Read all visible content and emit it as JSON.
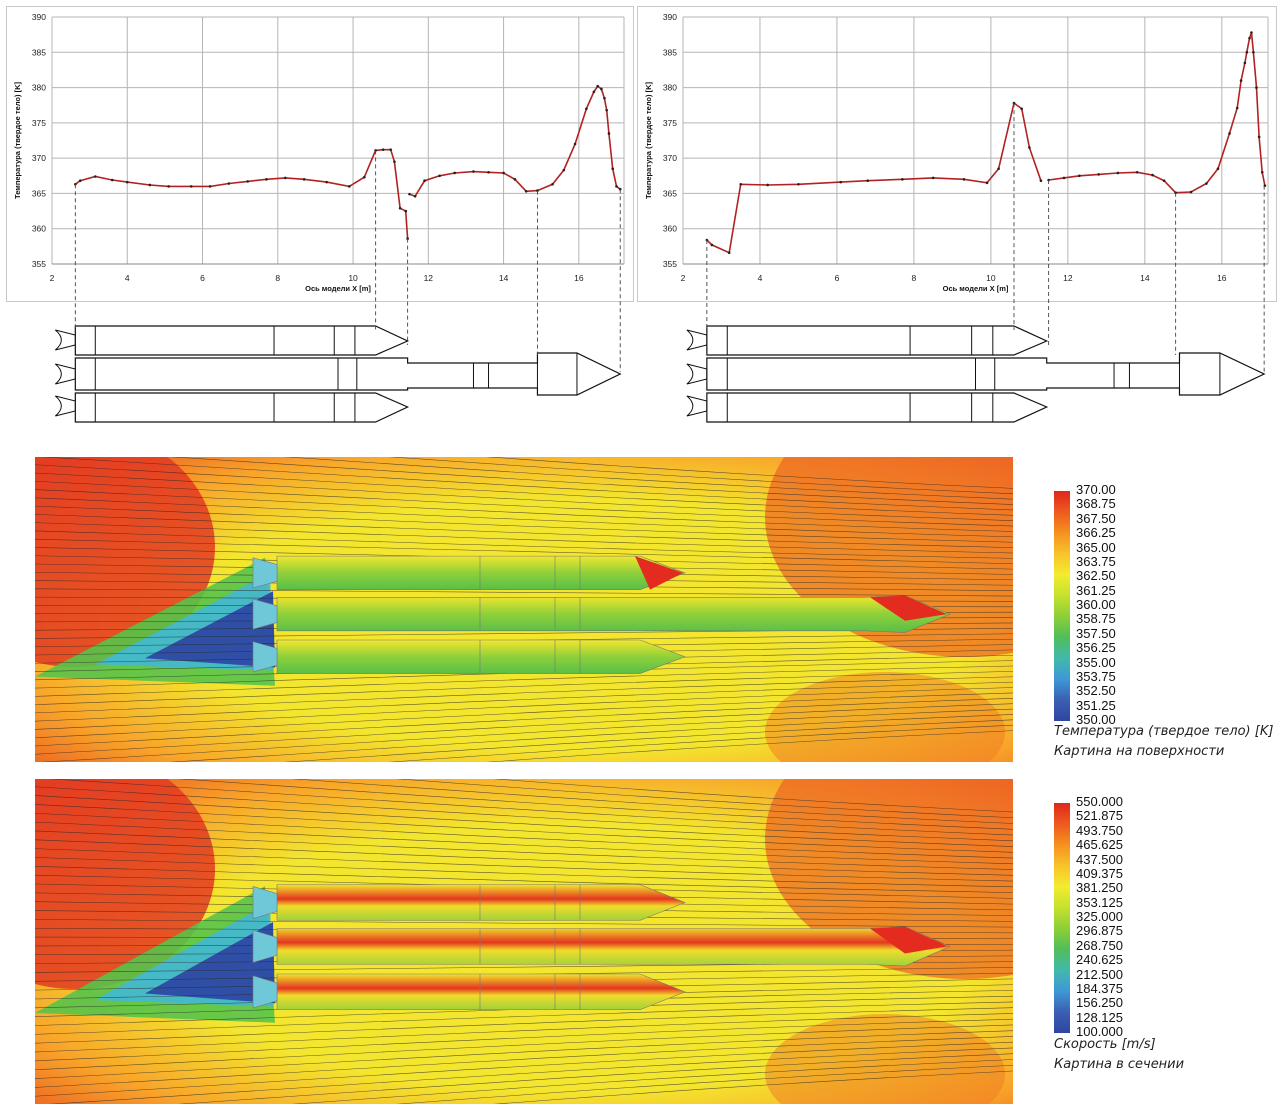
{
  "charts": [
    {
      "type": "line",
      "ylabel": "Температура (твердое тело) [K]",
      "xlabel": "Ось модели X [m]",
      "xlim": [
        2,
        17.2
      ],
      "ylim": [
        355,
        390
      ],
      "xticks": [
        "2",
        "4",
        "6",
        "8",
        "10",
        "12",
        "14",
        "16"
      ],
      "yticks": [
        "355",
        "360",
        "365",
        "370",
        "375",
        "380",
        "385",
        "390"
      ],
      "series_color": "#b22222",
      "segments": [
        [
          [
            2.62,
            366.3
          ],
          [
            2.75,
            366.8
          ],
          [
            3.15,
            367.4
          ],
          [
            3.6,
            366.9
          ],
          [
            4.0,
            366.6
          ],
          [
            4.6,
            366.2
          ],
          [
            5.1,
            366.0
          ],
          [
            5.7,
            366.0
          ],
          [
            6.2,
            366.0
          ],
          [
            6.7,
            366.4
          ],
          [
            7.2,
            366.7
          ],
          [
            7.7,
            367.0
          ],
          [
            8.2,
            367.2
          ],
          [
            8.7,
            367.0
          ],
          [
            9.3,
            366.6
          ],
          [
            9.9,
            366.0
          ],
          [
            10.3,
            367.3
          ],
          [
            10.6,
            371.1
          ],
          [
            10.8,
            371.2
          ],
          [
            11.0,
            371.2
          ],
          [
            11.1,
            369.5
          ],
          [
            11.25,
            362.9
          ],
          [
            11.4,
            362.5
          ],
          [
            11.45,
            358.6
          ]
        ],
        [
          [
            11.5,
            364.9
          ],
          [
            11.65,
            364.6
          ],
          [
            11.9,
            366.8
          ],
          [
            12.3,
            367.5
          ],
          [
            12.7,
            367.9
          ],
          [
            13.2,
            368.1
          ],
          [
            13.6,
            368.0
          ],
          [
            14.0,
            367.9
          ],
          [
            14.3,
            367.0
          ],
          [
            14.6,
            365.3
          ],
          [
            14.9,
            365.4
          ],
          [
            15.3,
            366.3
          ],
          [
            15.6,
            368.3
          ],
          [
            15.9,
            372.0
          ],
          [
            16.2,
            377.0
          ],
          [
            16.4,
            379.4
          ],
          [
            16.5,
            380.2
          ],
          [
            16.6,
            379.8
          ],
          [
            16.68,
            378.5
          ],
          [
            16.74,
            376.8
          ],
          [
            16.8,
            373.5
          ],
          [
            16.9,
            368.5
          ],
          [
            17.0,
            366.0
          ],
          [
            17.1,
            365.6
          ]
        ]
      ]
    },
    {
      "type": "line",
      "ylabel": "Температура (твердое тело) [K]",
      "xlabel": "Ось модели X [m]",
      "xlim": [
        2,
        17.2
      ],
      "ylim": [
        355,
        390
      ],
      "xticks": [
        "2",
        "4",
        "6",
        "8",
        "10",
        "12",
        "14",
        "16"
      ],
      "yticks": [
        "355",
        "360",
        "365",
        "370",
        "375",
        "380",
        "385",
        "390"
      ],
      "series_color": "#b22222",
      "segments": [
        [
          [
            2.62,
            358.4
          ],
          [
            2.75,
            357.7
          ],
          [
            3.2,
            356.6
          ],
          [
            3.5,
            366.3
          ],
          [
            4.2,
            366.2
          ],
          [
            5.0,
            366.3
          ],
          [
            6.1,
            366.6
          ],
          [
            6.8,
            366.8
          ],
          [
            7.7,
            367.0
          ],
          [
            8.5,
            367.2
          ],
          [
            9.3,
            367.0
          ],
          [
            9.9,
            366.5
          ],
          [
            10.2,
            368.5
          ],
          [
            10.6,
            377.8
          ],
          [
            10.8,
            377.0
          ],
          [
            11.0,
            371.5
          ],
          [
            11.3,
            366.8
          ]
        ],
        [
          [
            11.5,
            366.9
          ],
          [
            11.9,
            367.2
          ],
          [
            12.3,
            367.5
          ],
          [
            12.8,
            367.7
          ],
          [
            13.3,
            367.9
          ],
          [
            13.8,
            368.0
          ],
          [
            14.2,
            367.6
          ],
          [
            14.5,
            366.8
          ],
          [
            14.8,
            365.1
          ],
          [
            15.2,
            365.2
          ],
          [
            15.6,
            366.4
          ],
          [
            15.9,
            368.5
          ],
          [
            16.2,
            373.5
          ],
          [
            16.4,
            377.1
          ],
          [
            16.5,
            381.0
          ],
          [
            16.6,
            383.5
          ],
          [
            16.65,
            385.0
          ],
          [
            16.72,
            387.0
          ],
          [
            16.77,
            387.8
          ],
          [
            16.82,
            385.0
          ],
          [
            16.9,
            380.0
          ],
          [
            16.97,
            373.0
          ],
          [
            17.05,
            368.0
          ],
          [
            17.12,
            366.1
          ]
        ]
      ]
    }
  ],
  "legend_temperature": {
    "values": [
      "370.00",
      "368.75",
      "367.50",
      "366.25",
      "365.00",
      "363.75",
      "362.50",
      "361.25",
      "360.00",
      "358.75",
      "357.50",
      "356.25",
      "355.00",
      "353.75",
      "352.50",
      "351.25",
      "350.00"
    ],
    "title": "Температура (твердое тело) [K]",
    "subtitle": "Картина на поверхности"
  },
  "legend_velocity": {
    "values": [
      "550.000",
      "521.875",
      "493.750",
      "465.625",
      "437.500",
      "409.375",
      "381.250",
      "353.125",
      "325.000",
      "296.875",
      "268.750",
      "240.625",
      "212.500",
      "184.375",
      "156.250",
      "128.125",
      "100.000"
    ],
    "title": "Скорость [m/s]",
    "subtitle": "Картина в сечении"
  },
  "colorbar_colors": [
    "#e1261c",
    "#ee5a1e",
    "#f5911f",
    "#f8c32a",
    "#f3ec2e",
    "#c4e22e",
    "#8ccf37",
    "#4fbe5a",
    "#41b9ad",
    "#3e98d6",
    "#3a5fb3",
    "#2f45a0"
  ]
}
